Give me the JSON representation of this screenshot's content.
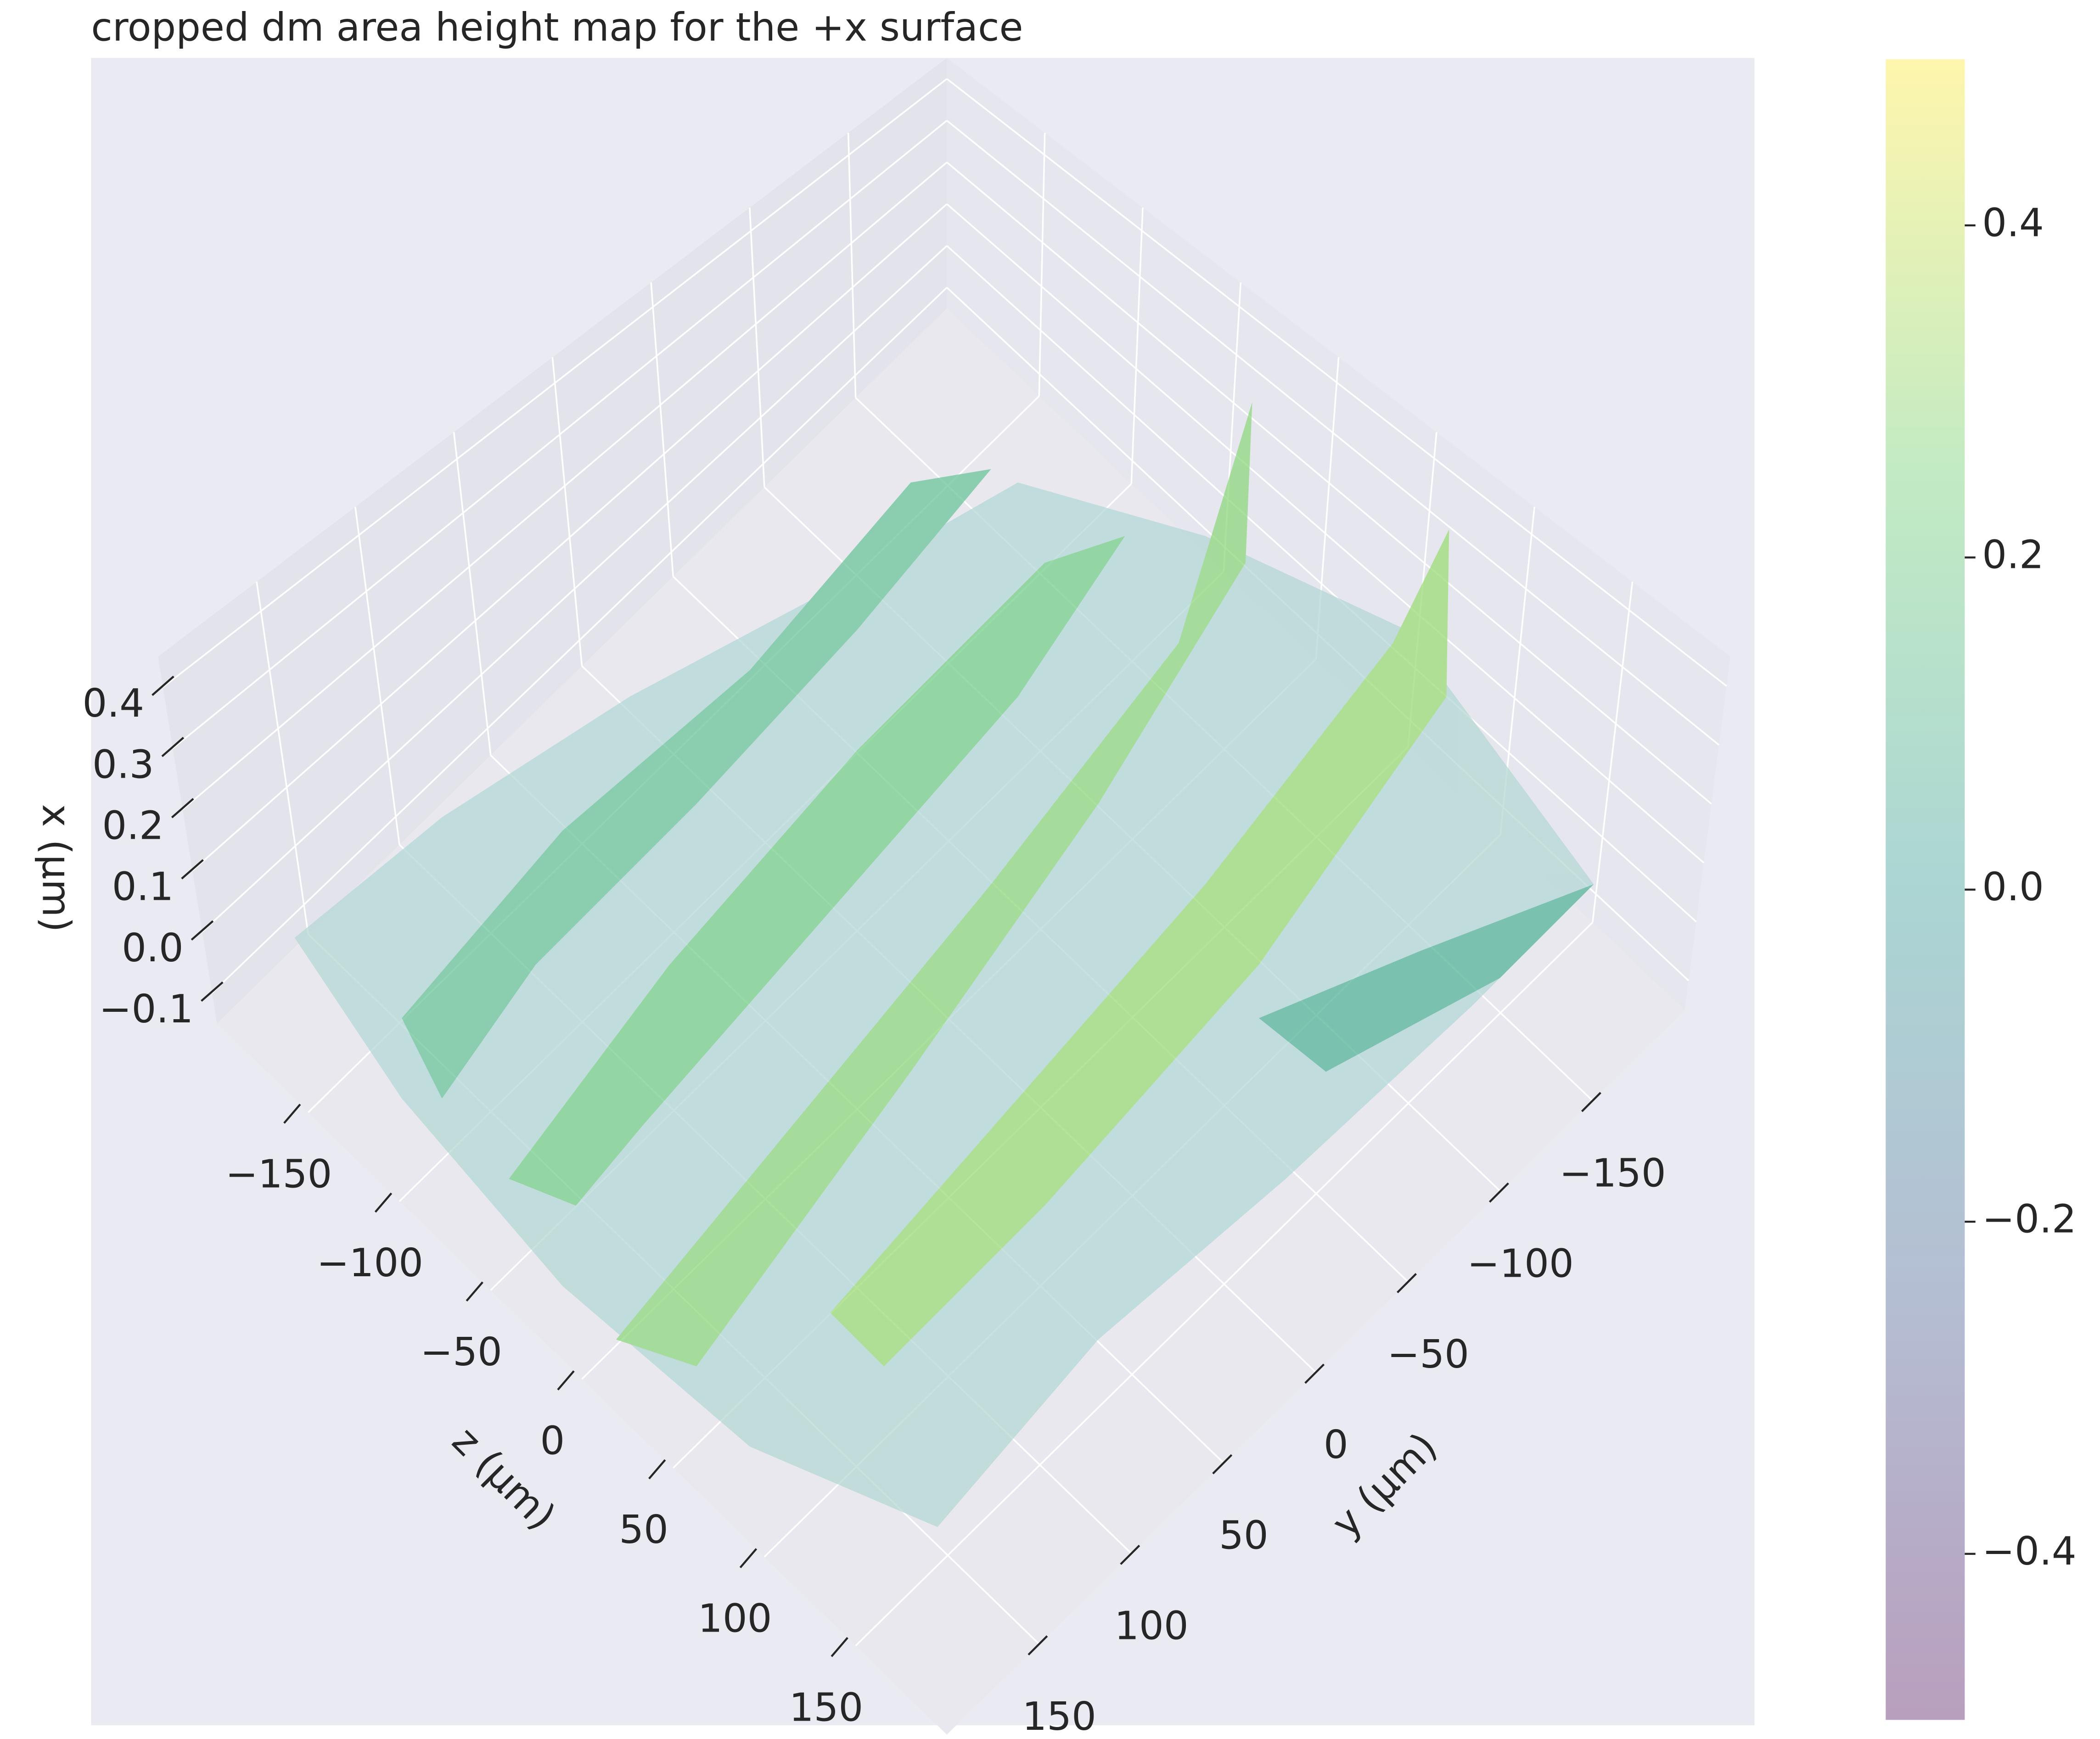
{
  "chart_data": {
    "type": "surface3d",
    "title": "cropped dm area height map for the +x surface",
    "xlabel": "z (µm)",
    "ylabel": "y (µm)",
    "zlabel": "x (µm)",
    "xlim": [
      -200,
      200
    ],
    "ylim": [
      -200,
      200
    ],
    "zlim": [
      -0.15,
      0.45
    ],
    "xticks": [
      {
        "value": -150,
        "label": "−150"
      },
      {
        "value": -100,
        "label": "−100"
      },
      {
        "value": -50,
        "label": "−50"
      },
      0,
      50,
      100,
      150
    ],
    "yticks": [
      {
        "value": -150,
        "label": "−150"
      },
      {
        "value": -100,
        "label": "−100"
      },
      {
        "value": -50,
        "label": "−50"
      },
      0,
      50,
      100,
      150
    ],
    "zticks": [
      {
        "value": -0.1,
        "label": "−0.1"
      },
      {
        "value": 0,
        "label": "0.0"
      },
      0.1,
      0.2,
      0.3,
      0.4
    ],
    "grid": true,
    "colorbar": {
      "lim": [
        -0.5,
        0.5
      ],
      "ticks": [
        {
          "value": -0.4,
          "label": "−0.4"
        },
        {
          "value": -0.2,
          "label": "−0.2"
        },
        {
          "value": 0,
          "label": "0.0"
        },
        0.2,
        0.4
      ],
      "colors": [
        "#440154",
        "#3b528b",
        "#21918c",
        "#5ec962",
        "#fde725"
      ],
      "alpha": 0.38
    }
  }
}
